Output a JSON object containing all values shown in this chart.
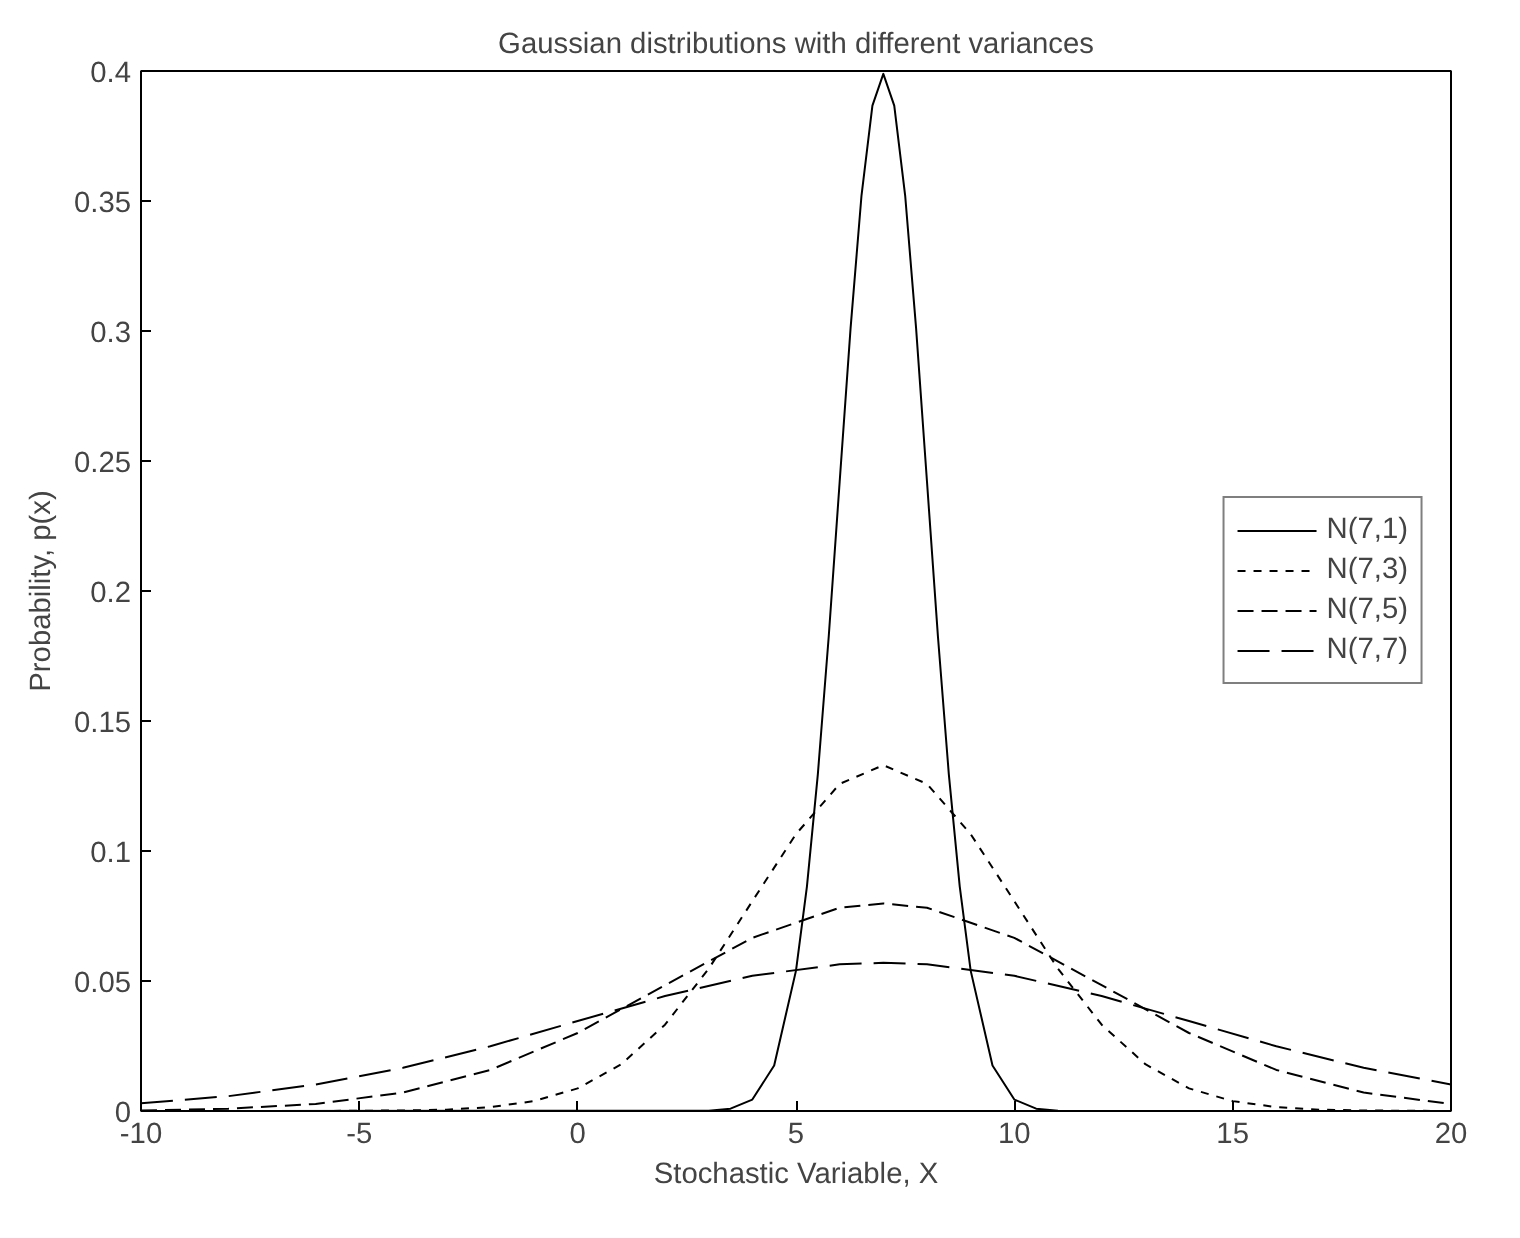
{
  "chart_data": {
    "type": "line",
    "title": "Gaussian distributions with different variances",
    "xlabel": "Stochastic Variable, X",
    "ylabel": "Probability, p(x)",
    "xlim": [
      -10,
      20
    ],
    "ylim": [
      0,
      0.4
    ],
    "xticks": [
      -10,
      -5,
      0,
      5,
      10,
      15,
      20
    ],
    "yticks": [
      0,
      0.05,
      0.1,
      0.15,
      0.2,
      0.25,
      0.3,
      0.35,
      0.4
    ],
    "grid": false,
    "legend": "right",
    "marker": "none",
    "series": [
      {
        "name": "N(7,1)",
        "color": "#000000",
        "line_style": "solid",
        "x": [
          -10,
          3,
          3.5,
          4,
          4.5,
          5,
          5.25,
          5.5,
          5.75,
          6,
          6.25,
          6.5,
          6.75,
          7,
          7.25,
          7.5,
          7.75,
          8,
          8.25,
          8.5,
          8.75,
          9,
          9.5,
          10,
          10.5,
          11,
          20
        ],
        "values": [
          0,
          0.0001,
          0.0009,
          0.0044,
          0.0175,
          0.054,
          0.0863,
          0.1295,
          0.1826,
          0.242,
          0.3011,
          0.3521,
          0.3867,
          0.3989,
          0.3867,
          0.3521,
          0.3011,
          0.242,
          0.1826,
          0.1295,
          0.0863,
          0.054,
          0.0175,
          0.0044,
          0.0009,
          0.0001,
          0
        ]
      },
      {
        "name": "N(7,3)",
        "color": "#000000",
        "line_style": "dotted",
        "x": [
          -10,
          -6,
          -4,
          -3,
          -2,
          -1,
          0,
          1,
          2,
          3,
          4,
          5,
          6,
          7,
          8,
          9,
          10,
          11,
          12,
          13,
          14,
          15,
          16,
          17,
          18,
          20
        ],
        "values": [
          0,
          0,
          0.0002,
          0.0005,
          0.0015,
          0.0038,
          0.0087,
          0.018,
          0.0332,
          0.0547,
          0.0807,
          0.1065,
          0.1258,
          0.133,
          0.1258,
          0.1065,
          0.0807,
          0.0547,
          0.0332,
          0.018,
          0.0087,
          0.0038,
          0.0015,
          0.0005,
          0.0002,
          0
        ]
      },
      {
        "name": "N(7,5)",
        "color": "#000000",
        "line_style": "dashed",
        "x": [
          -10,
          -8,
          -6,
          -4,
          -2,
          0,
          2,
          4,
          6,
          7,
          8,
          10,
          12,
          14,
          16,
          18,
          20
        ],
        "values": [
          0.0002,
          0.0009,
          0.0027,
          0.0071,
          0.0158,
          0.03,
          0.0484,
          0.0666,
          0.0782,
          0.0798,
          0.0782,
          0.0666,
          0.0484,
          0.03,
          0.0158,
          0.0071,
          0.0027
        ]
      },
      {
        "name": "N(7,7)",
        "color": "#000000",
        "line_style": "longdashed",
        "x": [
          -10,
          -8,
          -6,
          -4,
          -2,
          0,
          2,
          4,
          6,
          7,
          8,
          10,
          12,
          14,
          16,
          18,
          20
        ],
        "values": [
          0.003,
          0.0057,
          0.0102,
          0.0166,
          0.0249,
          0.0346,
          0.0442,
          0.052,
          0.0564,
          0.057,
          0.0564,
          0.052,
          0.0442,
          0.0346,
          0.0249,
          0.0166,
          0.0102
        ]
      }
    ]
  }
}
